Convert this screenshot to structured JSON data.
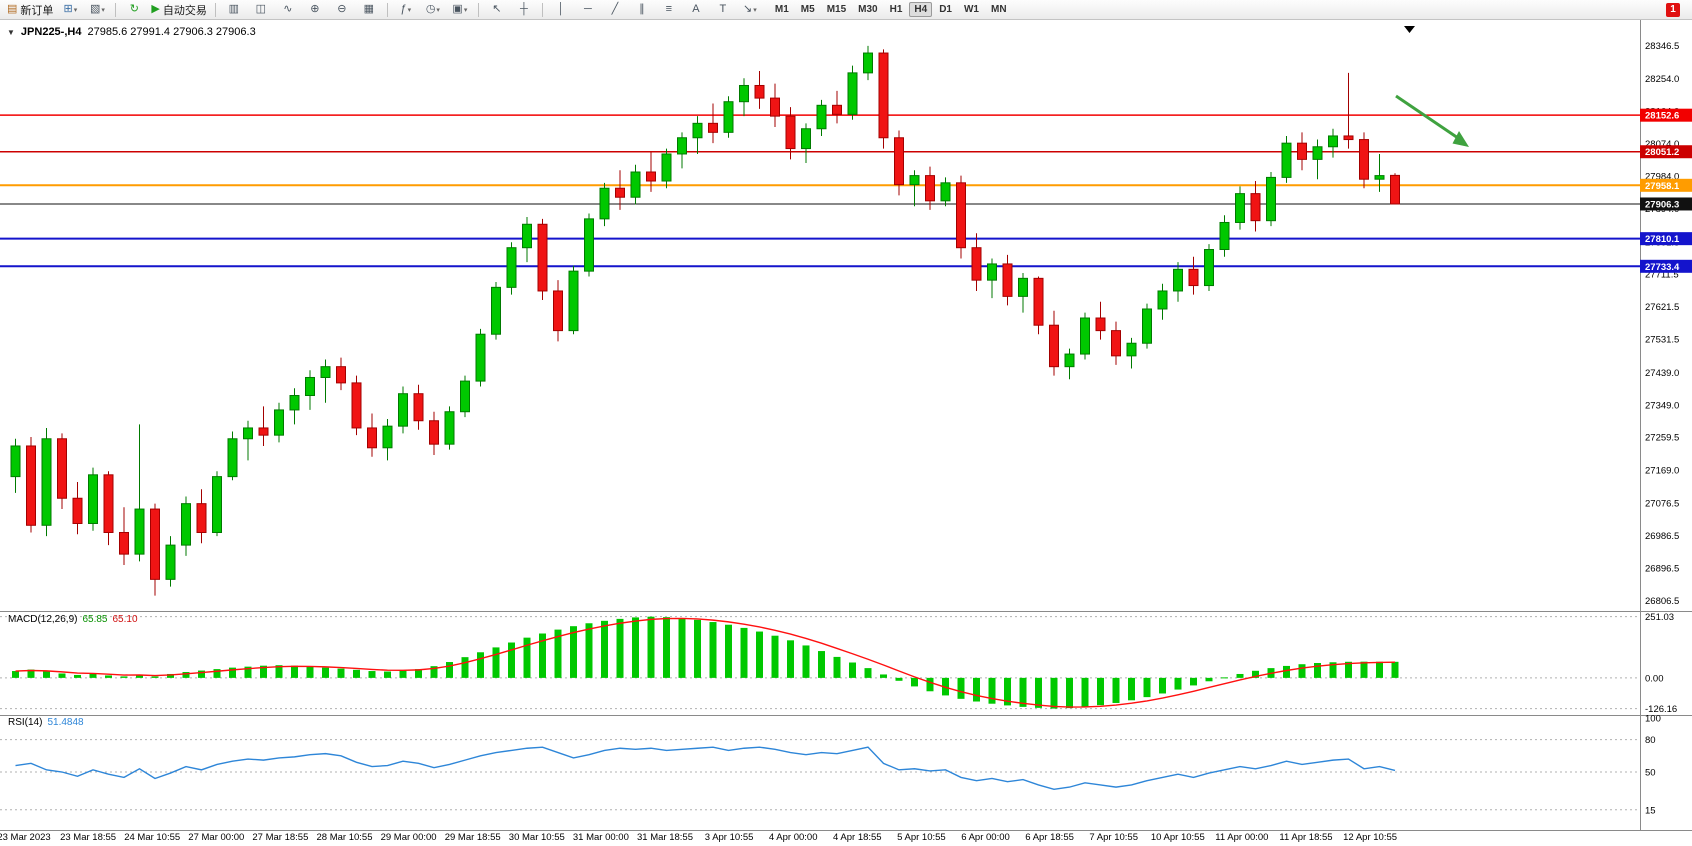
{
  "toolbar": {
    "new_order": "新订单",
    "autotrading": "自动交易",
    "timeframes": [
      "M1",
      "M5",
      "M15",
      "M30",
      "H1",
      "H4",
      "D1",
      "W1",
      "MN"
    ],
    "active_timeframe": "H4",
    "notification_count": "1",
    "icons": {
      "new-order": "▤",
      "new-chart": "⊞",
      "profiles": "▧",
      "refresh": "↻",
      "autotrading": "▶",
      "bar-chart": "▥",
      "candlestick": "◫",
      "line-chart": "∿",
      "zoom-in": "⊕",
      "zoom-out": "⊖",
      "tile-windows": "▦",
      "indicators": "ƒ",
      "periods": "◷",
      "templates": "▣",
      "cursor": "↖",
      "crosshair": "┼",
      "vertical-line": "│",
      "horizontal-line": "─",
      "trendline": "╱",
      "channel": "∥",
      "fibonacci": "≡",
      "text": "A",
      "text-label": "T",
      "arrows": "↘",
      "dropdown": "▾"
    }
  },
  "chart_data": {
    "type": "candlestick",
    "symbol": "JPN225-",
    "timeframe": "H4",
    "title": "JPN225-,H4",
    "ohlc_line": "27985.6 27991.4 27906.3 27906.3",
    "price_range": [
      26780,
      28400
    ],
    "price_axis_ticks": [
      "28346.5",
      "28254.0",
      "28164.0",
      "28074.0",
      "27984.0",
      "27894.0",
      "27801.5",
      "27711.5",
      "27621.5",
      "27531.5",
      "27439.0",
      "27349.0",
      "27259.5",
      "27169.0",
      "27076.5",
      "26986.5",
      "26896.5",
      "26806.5"
    ],
    "colors": {
      "bull": "#00c800",
      "bull_border": "#007a00",
      "bear": "#f01414",
      "bear_border": "#a30000",
      "background": "#ffffff",
      "axis_line": "#8a8a8a"
    },
    "horizontal_lines": [
      {
        "label": "28152.6",
        "price": 28152.6,
        "color": "#f20000",
        "width": 1.5,
        "kind": "resistance"
      },
      {
        "label": "28051.2",
        "price": 28051.2,
        "color": "#cc0000",
        "width": 1.5,
        "kind": "resistance"
      },
      {
        "label": "27958.1",
        "price": 27958.1,
        "color": "#ff9c00",
        "width": 2,
        "kind": "level"
      },
      {
        "label": "27906.3",
        "price": 27906.3,
        "color": "#111111",
        "width": 1,
        "kind": "current-price"
      },
      {
        "label": "27810.1",
        "price": 27810.1,
        "color": "#1414cc",
        "width": 2,
        "kind": "support"
      },
      {
        "label": "27733.4",
        "price": 27733.4,
        "color": "#1414cc",
        "width": 2,
        "kind": "support"
      }
    ],
    "arrow_annotation": {
      "direction": "down-right",
      "color": "#3fa23f"
    },
    "time_labels": [
      "23 Mar 2023",
      "23 Mar 18:55",
      "24 Mar 10:55",
      "27 Mar 00:00",
      "27 Mar 18:55",
      "28 Mar 10:55",
      "29 Mar 00:00",
      "29 Mar 18:55",
      "30 Mar 10:55",
      "31 Mar 00:00",
      "31 Mar 18:55",
      "3 Apr 10:55",
      "4 Apr 00:00",
      "4 Apr 18:55",
      "5 Apr 10:55",
      "6 Apr 00:00",
      "6 Apr 18:55",
      "7 Apr 10:55",
      "10 Apr 10:55",
      "11 Apr 00:00",
      "11 Apr 18:55",
      "12 Apr 10:55"
    ],
    "candles": [
      [
        27150,
        27255,
        27105,
        27235
      ],
      [
        27235,
        27260,
        26995,
        27015
      ],
      [
        27015,
        27285,
        26985,
        27255
      ],
      [
        27255,
        27270,
        27060,
        27090
      ],
      [
        27090,
        27135,
        26990,
        27020
      ],
      [
        27020,
        27175,
        27000,
        27155
      ],
      [
        27155,
        27165,
        26960,
        26995
      ],
      [
        26995,
        27065,
        26905,
        26935
      ],
      [
        26935,
        27295,
        26915,
        27060
      ],
      [
        27060,
        27075,
        26820,
        26865
      ],
      [
        26865,
        26985,
        26845,
        26960
      ],
      [
        26960,
        27095,
        26930,
        27075
      ],
      [
        27075,
        27115,
        26965,
        26995
      ],
      [
        26995,
        27165,
        26985,
        27150
      ],
      [
        27150,
        27275,
        27140,
        27255
      ],
      [
        27255,
        27305,
        27195,
        27285
      ],
      [
        27285,
        27345,
        27235,
        27265
      ],
      [
        27265,
        27355,
        27245,
        27335
      ],
      [
        27335,
        27395,
        27295,
        27375
      ],
      [
        27375,
        27445,
        27335,
        27425
      ],
      [
        27425,
        27475,
        27355,
        27455
      ],
      [
        27455,
        27480,
        27390,
        27410
      ],
      [
        27410,
        27430,
        27265,
        27285
      ],
      [
        27285,
        27325,
        27205,
        27230
      ],
      [
        27230,
        27310,
        27195,
        27290
      ],
      [
        27290,
        27400,
        27270,
        27380
      ],
      [
        27380,
        27405,
        27280,
        27305
      ],
      [
        27305,
        27330,
        27210,
        27240
      ],
      [
        27240,
        27345,
        27225,
        27330
      ],
      [
        27330,
        27430,
        27315,
        27415
      ],
      [
        27415,
        27560,
        27400,
        27545
      ],
      [
        27545,
        27690,
        27530,
        27675
      ],
      [
        27675,
        27800,
        27655,
        27785
      ],
      [
        27785,
        27870,
        27745,
        27850
      ],
      [
        27850,
        27865,
        27640,
        27665
      ],
      [
        27665,
        27695,
        27525,
        27555
      ],
      [
        27555,
        27735,
        27545,
        27720
      ],
      [
        27720,
        27880,
        27705,
        27865
      ],
      [
        27865,
        27965,
        27845,
        27950
      ],
      [
        27950,
        28000,
        27890,
        27925
      ],
      [
        27925,
        28015,
        27905,
        27995
      ],
      [
        27995,
        28050,
        27940,
        27970
      ],
      [
        27970,
        28060,
        27950,
        28045
      ],
      [
        28045,
        28105,
        28005,
        28090
      ],
      [
        28090,
        28150,
        28045,
        28130
      ],
      [
        28130,
        28185,
        28075,
        28105
      ],
      [
        28105,
        28205,
        28090,
        28190
      ],
      [
        28190,
        28255,
        28150,
        28235
      ],
      [
        28235,
        28275,
        28170,
        28200
      ],
      [
        28200,
        28240,
        28120,
        28150
      ],
      [
        28150,
        28175,
        28030,
        28060
      ],
      [
        28060,
        28130,
        28020,
        28115
      ],
      [
        28115,
        28195,
        28095,
        28180
      ],
      [
        28180,
        28220,
        28130,
        28155
      ],
      [
        28155,
        28290,
        28140,
        28270
      ],
      [
        28270,
        28345,
        28250,
        28325
      ],
      [
        28325,
        28335,
        28060,
        28090
      ],
      [
        28090,
        28110,
        27930,
        27960
      ],
      [
        27960,
        28000,
        27900,
        27985
      ],
      [
        27985,
        28010,
        27890,
        27915
      ],
      [
        27915,
        27980,
        27900,
        27965
      ],
      [
        27965,
        27985,
        27755,
        27785
      ],
      [
        27785,
        27825,
        27665,
        27695
      ],
      [
        27695,
        27755,
        27645,
        27740
      ],
      [
        27740,
        27765,
        27625,
        27650
      ],
      [
        27650,
        27715,
        27605,
        27700
      ],
      [
        27700,
        27705,
        27545,
        27570
      ],
      [
        27570,
        27610,
        27430,
        27455
      ],
      [
        27455,
        27505,
        27420,
        27490
      ],
      [
        27490,
        27605,
        27475,
        27590
      ],
      [
        27590,
        27635,
        27530,
        27555
      ],
      [
        27555,
        27580,
        27460,
        27485
      ],
      [
        27485,
        27535,
        27450,
        27520
      ],
      [
        27520,
        27630,
        27505,
        27615
      ],
      [
        27615,
        27685,
        27585,
        27665
      ],
      [
        27665,
        27745,
        27635,
        27725
      ],
      [
        27725,
        27760,
        27655,
        27680
      ],
      [
        27680,
        27795,
        27665,
        27780
      ],
      [
        27780,
        27875,
        27760,
        27855
      ],
      [
        27855,
        27955,
        27835,
        27935
      ],
      [
        27935,
        27970,
        27830,
        27860
      ],
      [
        27860,
        27995,
        27845,
        27980
      ],
      [
        27980,
        28095,
        27965,
        28075
      ],
      [
        28075,
        28105,
        28000,
        28030
      ],
      [
        28030,
        28085,
        27975,
        28065
      ],
      [
        28065,
        28115,
        28035,
        28095
      ],
      [
        28095,
        28270,
        28060,
        28085
      ],
      [
        28085,
        28105,
        27950,
        27975
      ],
      [
        27975,
        28045,
        27940,
        27985
      ],
      [
        27985.6,
        27991.4,
        27906.3,
        27906.3
      ]
    ],
    "indicators": {
      "macd": {
        "label": "MACD(12,26,9)",
        "value_main": "65.85",
        "value_signal": "65.10",
        "axis_labels": [
          "251.03",
          "0.00",
          "-126.16"
        ],
        "range": [
          -140,
          262
        ],
        "histogram_color": "#00c800",
        "signal_color": "#ff1010",
        "histogram": [
          28,
          34,
          26,
          18,
          12,
          16,
          10,
          6,
          12,
          6,
          16,
          24,
          30,
          36,
          42,
          46,
          50,
          52,
          50,
          46,
          42,
          38,
          33,
          28,
          26,
          30,
          36,
          48,
          65,
          85,
          105,
          125,
          145,
          165,
          182,
          198,
          212,
          224,
          234,
          242,
          248,
          251,
          249,
          245,
          238,
          229,
          218,
          205,
          190,
          173,
          154,
          133,
          110,
          86,
          63,
          40,
          14,
          -12,
          -35,
          -55,
          -72,
          -86,
          -97,
          -106,
          -113,
          -119,
          -123,
          -126,
          -124,
          -119,
          -112,
          -103,
          -92,
          -79,
          -64,
          -48,
          -31,
          -14,
          2,
          16,
          29,
          40,
          49,
          56,
          61,
          64,
          66,
          66.5,
          66.2,
          65.85
        ]
      },
      "rsi": {
        "label": "RSI(14)",
        "value": "51.4848",
        "axis_labels": [
          "100",
          "80",
          "50",
          "15"
        ],
        "levels": [
          80,
          50,
          15
        ],
        "range": [
          0,
          100
        ],
        "line_color": "#2e86d8",
        "values": [
          56,
          58,
          52,
          50,
          46,
          52,
          48,
          45,
          53,
          44,
          49,
          55,
          52,
          57,
          60,
          62,
          61,
          63,
          64,
          66,
          67,
          65,
          59,
          55,
          56,
          60,
          58,
          54,
          57,
          61,
          65,
          68,
          70,
          72,
          73,
          68,
          63,
          66,
          70,
          72,
          71,
          72,
          70,
          71,
          72,
          73,
          70,
          72,
          73,
          71,
          68,
          66,
          68,
          67,
          70,
          73,
          58,
          52,
          53,
          51,
          52,
          45,
          42,
          44,
          41,
          43,
          38,
          34,
          36,
          40,
          38,
          36,
          38,
          42,
          45,
          48,
          45,
          49,
          52,
          55,
          53,
          56,
          60,
          57,
          59,
          61,
          62,
          53,
          55,
          51.4848
        ]
      }
    }
  }
}
